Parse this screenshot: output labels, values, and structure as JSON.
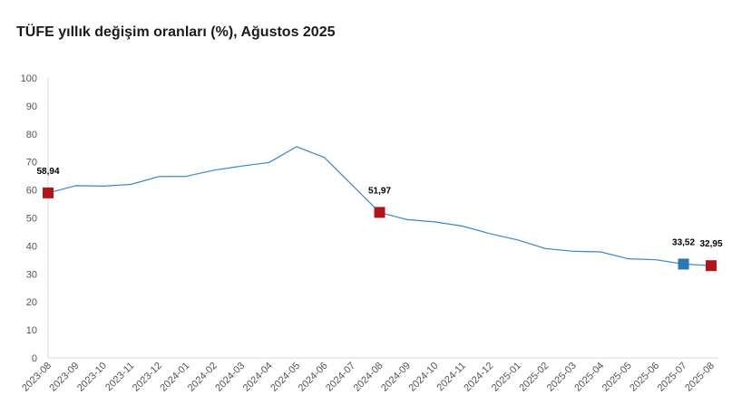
{
  "title": "TÜFE yıllık değişim oranları (%), Ağustos 2025",
  "chart_data": {
    "type": "line",
    "title": "TÜFE yıllık değişim oranları (%), Ağustos 2025",
    "xlabel": "",
    "ylabel": "",
    "ylim": [
      0,
      100
    ],
    "yticks": [
      0,
      10,
      20,
      30,
      40,
      50,
      60,
      70,
      80,
      90,
      100
    ],
    "grid": false,
    "categories": [
      "2023-08",
      "2023-09",
      "2023-10",
      "2023-11",
      "2023-12",
      "2024-01",
      "2024-02",
      "2024-03",
      "2024-04",
      "2024-05",
      "2024-06",
      "2024-07",
      "2024-08",
      "2024-09",
      "2024-10",
      "2024-11",
      "2024-12",
      "2025-01",
      "2025-02",
      "2025-03",
      "2025-04",
      "2025-05",
      "2025-06",
      "2025-07",
      "2025-08"
    ],
    "series": [
      {
        "values": [
          58.94,
          61.53,
          61.36,
          61.98,
          64.77,
          64.86,
          67.07,
          68.5,
          69.8,
          75.45,
          71.6,
          61.78,
          51.97,
          49.38,
          48.58,
          47.09,
          44.38,
          42.12,
          39.05,
          38.1,
          37.86,
          35.41,
          35.05,
          33.52,
          32.95
        ],
        "color": "#3a86c8"
      }
    ],
    "highlighted_points": [
      {
        "category": "2023-08",
        "value": 58.94,
        "label": "58,94",
        "color": "#b0151c"
      },
      {
        "category": "2024-08",
        "value": 51.97,
        "label": "51,97",
        "color": "#b0151c"
      },
      {
        "category": "2025-07",
        "value": 33.52,
        "label": "33,52",
        "color": "#2e75b6"
      },
      {
        "category": "2025-08",
        "value": 32.95,
        "label": "32,95",
        "color": "#b0151c"
      }
    ]
  }
}
